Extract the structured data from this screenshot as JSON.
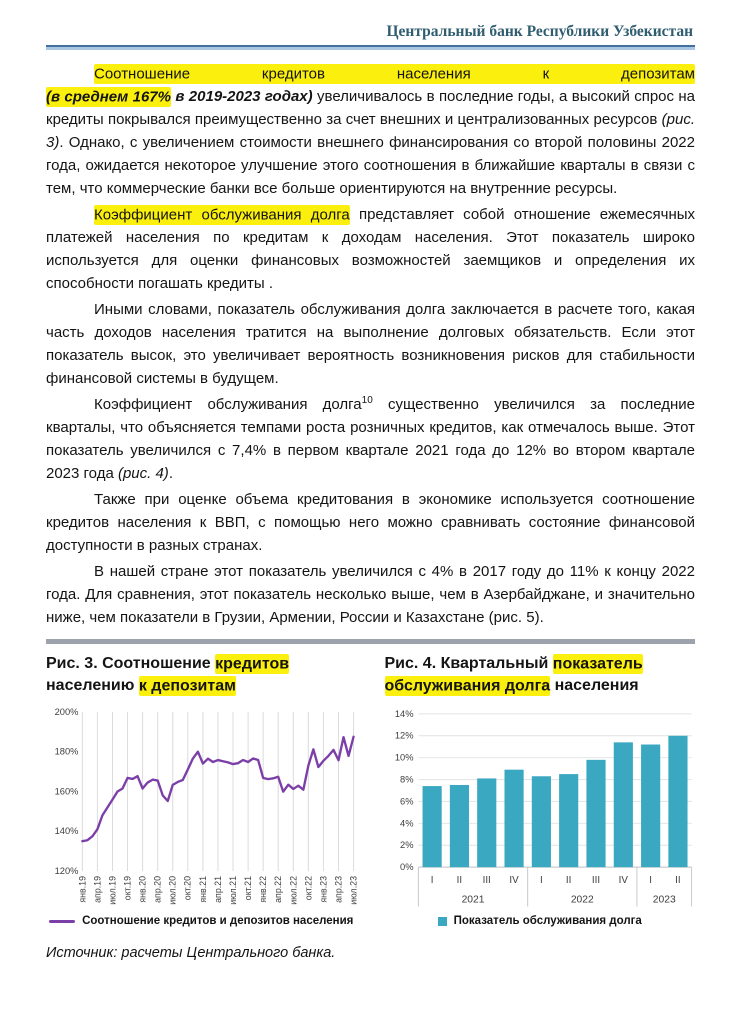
{
  "page": {
    "header_title": "Центральный банк Республики Узбекистан",
    "source_note": "Источник: расчеты Центрального банка."
  },
  "colors": {
    "highlight": "#FBF00D",
    "header_text": "#2F5D6F",
    "line_series": "#7C3FA8",
    "bar_series": "#3AA8C1",
    "divider": "#9CA3AD"
  },
  "paragraphs": {
    "p1": {
      "hl_line": "Соотношение кредитов населения к депозитам",
      "bi_hl": "(в среднем 167%",
      "bi": " в 2019-2023 годах)",
      "t1": " увеличивалось в последние годы, а высокий спрос на кредиты покрывался преимущественно за счет внешних и централизованных ресурсов ",
      "ref": "(рис. 3)",
      "t2": ". Однако, с увеличением стоимости внешнего финансирования со второй половины 2022 года, ожидается некоторое улучшение этого соотношения в ближайшие кварталы в связи с тем, что коммерческие банки все больше ориентируются на внутренние ресурсы."
    },
    "p2": {
      "hl": "Коэффициент обслуживания долга",
      "t": " представляет собой отношение ежемесячных платежей населения по кредитам к доходам населения. Этот показатель широко используется для оценки финансовых возможностей заемщиков и определения их способности погашать кредиты ."
    },
    "p3": {
      "t": "Иными словами, показатель обслуживания долга заключается в расчете того, какая часть доходов населения тратится на выполнение долговых обязательств. Если этот показатель высок, это увеличивает вероятность возникновения рисков для стабильности финансовой системы в будущем."
    },
    "p4": {
      "t1": "Коэффициент обслуживания долга",
      "sup": "10",
      "t2": " существенно увеличился за последние кварталы, что объясняется темпами роста розничных кредитов, как отмечалось выше. Этот показатель увеличился с 7,4% в первом квартале 2021 года до 12% во втором квартале 2023 года ",
      "ref": "(рис. 4)",
      "t3": "."
    },
    "p5": {
      "t": "Также при оценке объема кредитования в экономике используется соотношение кредитов населения к ВВП, с помощью него можно сравнивать состояние финансовой доступности в разных странах."
    },
    "p6": {
      "t": "В нашей стране этот показатель увеличился с 4% в 2017 году до 11% к концу 2022 года. Для сравнения, этот показатель несколько выше, чем в Азербайджане, и значительно ниже, чем показатели в Грузии, Армении, России и Казахстане (рис. 5)."
    }
  },
  "figure3": {
    "title": {
      "pre": "Рис. 3. Соотношение ",
      "hl1": "кредитов",
      "line2_pre": "населению ",
      "hl2": "к депозитам"
    },
    "legend": "Соотношение кредитов и депозитов населения",
    "chart_data": {
      "type": "line",
      "title": "Рис. 3. Соотношение кредитов населению к депозитам",
      "x_start": "янв.19",
      "x_end": "июл.23",
      "x_tick_labels": [
        "янв.19",
        "апр.19",
        "июл.19",
        "окт.19",
        "янв.20",
        "апр.20",
        "июл.20",
        "окт.20",
        "янв.21",
        "апр.21",
        "июл.21",
        "окт.21",
        "янв.22",
        "апр.22",
        "июл.22",
        "окт.22",
        "янв.23",
        "апр.23",
        "июл.23"
      ],
      "label_every_n_months": 3,
      "ylim": [
        120,
        200
      ],
      "ytick_labels": [
        "120%",
        "140%",
        "160%",
        "180%",
        "200%"
      ],
      "grid": "vertical",
      "legend_position": "bottom",
      "series": [
        {
          "name": "Соотношение кредитов и депозитов населения",
          "values": [
            135.0,
            135.5,
            137.5,
            141.0,
            148.0,
            152.0,
            156.0,
            160.0,
            161.5,
            166.8,
            166.3,
            167.7,
            161.5,
            164.5,
            166.0,
            165.5,
            158.0,
            155.2,
            163.3,
            164.8,
            165.8,
            171.0,
            176.5,
            180.0,
            174.0,
            176.5,
            174.8,
            175.8,
            175.2,
            174.6,
            173.8,
            174.2,
            175.8,
            174.8,
            176.6,
            175.8,
            166.8,
            166.2,
            166.6,
            167.4,
            159.9,
            163.4,
            161.3,
            162.9,
            160.9,
            173.0,
            181.2,
            172.3,
            175.4,
            177.9,
            180.9,
            175.7,
            187.3,
            177.9,
            187.5
          ]
        }
      ]
    }
  },
  "figure4": {
    "title": {
      "pre": "Рис. 4. Квартальный ",
      "hl1": "показатель",
      "hl2": "обслуживания долга",
      "post": " населения"
    },
    "legend": "Показатель обслуживания долга",
    "chart_data": {
      "type": "bar",
      "title": "Рис. 4. Квартальный показатель обслуживания долга населения",
      "categories": [
        "I",
        "II",
        "III",
        "IV",
        "I",
        "II",
        "III",
        "IV",
        "I",
        "II"
      ],
      "year_groups": [
        {
          "label": "2021",
          "count": 4
        },
        {
          "label": "2022",
          "count": 4
        },
        {
          "label": "2023",
          "count": 2
        }
      ],
      "values": [
        7.4,
        7.5,
        8.1,
        8.9,
        8.3,
        8.5,
        9.8,
        11.4,
        11.2,
        12.0
      ],
      "ylim": [
        0,
        14
      ],
      "ytick_step": 2,
      "ytick_labels": [
        "0%",
        "2%",
        "4%",
        "6%",
        "8%",
        "10%",
        "12%",
        "14%"
      ],
      "grid": "horizontal",
      "legend_position": "bottom"
    }
  }
}
